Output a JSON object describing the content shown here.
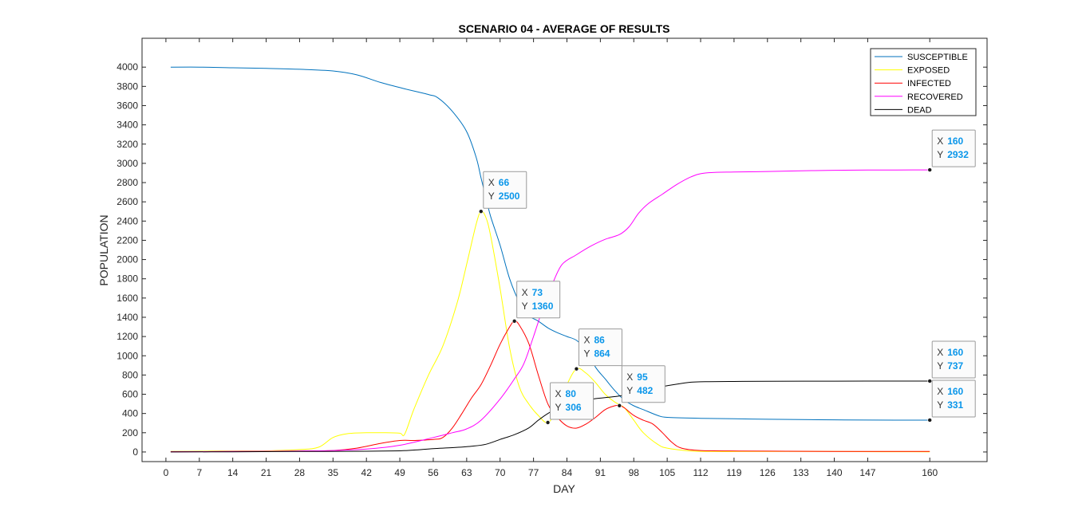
{
  "chart_data": {
    "type": "line",
    "title": "SCENARIO 04 - AVERAGE OF RESULTS",
    "xlabel": "DAY",
    "ylabel": "POPULATION",
    "xlim": [
      -5,
      172
    ],
    "ylim": [
      -100,
      4300
    ],
    "x_ticks": [
      0,
      7,
      14,
      21,
      28,
      35,
      42,
      49,
      56,
      63,
      70,
      77,
      84,
      91,
      98,
      105,
      112,
      119,
      126,
      133,
      140,
      147,
      160
    ],
    "y_ticks": [
      0,
      200,
      400,
      600,
      800,
      1000,
      1200,
      1400,
      1600,
      1800,
      2000,
      2200,
      2400,
      2600,
      2800,
      3000,
      3200,
      3400,
      3600,
      3800,
      4000
    ],
    "grid": false,
    "legend_position": "top-right",
    "series": [
      {
        "name": "SUSCEPTIBLE",
        "color": "#0072bd",
        "points": [
          [
            1,
            4000
          ],
          [
            7,
            4000
          ],
          [
            14,
            3993
          ],
          [
            21,
            3987
          ],
          [
            28,
            3978
          ],
          [
            35,
            3960
          ],
          [
            40,
            3920
          ],
          [
            45,
            3840
          ],
          [
            50,
            3775
          ],
          [
            55,
            3715
          ],
          [
            57,
            3680
          ],
          [
            60,
            3540
          ],
          [
            63,
            3330
          ],
          [
            65,
            3060
          ],
          [
            66,
            2850
          ],
          [
            67,
            2650
          ],
          [
            68,
            2450
          ],
          [
            70,
            2150
          ],
          [
            72,
            1800
          ],
          [
            74,
            1560
          ],
          [
            76,
            1420
          ],
          [
            78,
            1360
          ],
          [
            80,
            1290
          ],
          [
            82,
            1240
          ],
          [
            84,
            1200
          ],
          [
            86,
            1160
          ],
          [
            88,
            1060
          ],
          [
            90,
            880
          ],
          [
            92,
            760
          ],
          [
            94,
            640
          ],
          [
            96,
            540
          ],
          [
            98,
            480
          ],
          [
            100,
            440
          ],
          [
            103,
            380
          ],
          [
            105,
            360
          ],
          [
            112,
            350
          ],
          [
            119,
            345
          ],
          [
            126,
            340
          ],
          [
            133,
            337
          ],
          [
            140,
            334
          ],
          [
            147,
            332
          ],
          [
            160,
            331
          ]
        ]
      },
      {
        "name": "EXPOSED",
        "color": "#ffff00",
        "points": [
          [
            1,
            5
          ],
          [
            7,
            8
          ],
          [
            14,
            10
          ],
          [
            21,
            12
          ],
          [
            28,
            25
          ],
          [
            32,
            50
          ],
          [
            35,
            150
          ],
          [
            38,
            190
          ],
          [
            42,
            200
          ],
          [
            46,
            200
          ],
          [
            49,
            195
          ],
          [
            50,
            185
          ],
          [
            52,
            450
          ],
          [
            55,
            800
          ],
          [
            58,
            1100
          ],
          [
            61,
            1550
          ],
          [
            63,
            1950
          ],
          [
            65,
            2370
          ],
          [
            66,
            2500
          ],
          [
            67,
            2440
          ],
          [
            68,
            2250
          ],
          [
            70,
            1700
          ],
          [
            72,
            1080
          ],
          [
            74,
            680
          ],
          [
            76,
            500
          ],
          [
            78,
            380
          ],
          [
            80,
            306
          ],
          [
            82,
            450
          ],
          [
            84,
            700
          ],
          [
            86,
            864
          ],
          [
            88,
            820
          ],
          [
            90,
            720
          ],
          [
            92,
            600
          ],
          [
            94,
            520
          ],
          [
            96,
            460
          ],
          [
            98,
            330
          ],
          [
            100,
            200
          ],
          [
            103,
            80
          ],
          [
            105,
            40
          ],
          [
            110,
            10
          ],
          [
            115,
            5
          ],
          [
            120,
            5
          ],
          [
            130,
            5
          ],
          [
            140,
            5
          ],
          [
            150,
            3
          ],
          [
            160,
            2
          ]
        ]
      },
      {
        "name": "INFECTED",
        "color": "#ff0000",
        "points": [
          [
            1,
            3
          ],
          [
            14,
            5
          ],
          [
            28,
            10
          ],
          [
            35,
            15
          ],
          [
            40,
            40
          ],
          [
            45,
            90
          ],
          [
            49,
            120
          ],
          [
            52,
            120
          ],
          [
            56,
            130
          ],
          [
            58,
            150
          ],
          [
            60,
            250
          ],
          [
            62,
            400
          ],
          [
            64,
            560
          ],
          [
            66,
            700
          ],
          [
            68,
            900
          ],
          [
            70,
            1120
          ],
          [
            72,
            1300
          ],
          [
            73,
            1360
          ],
          [
            74,
            1320
          ],
          [
            76,
            1130
          ],
          [
            78,
            800
          ],
          [
            80,
            500
          ],
          [
            82,
            360
          ],
          [
            84,
            270
          ],
          [
            86,
            248
          ],
          [
            88,
            290
          ],
          [
            90,
            360
          ],
          [
            92,
            440
          ],
          [
            94,
            480
          ],
          [
            95,
            482
          ],
          [
            96,
            460
          ],
          [
            98,
            380
          ],
          [
            100,
            330
          ],
          [
            102,
            290
          ],
          [
            104,
            200
          ],
          [
            106,
            100
          ],
          [
            108,
            40
          ],
          [
            112,
            15
          ],
          [
            120,
            10
          ],
          [
            130,
            8
          ],
          [
            140,
            6
          ],
          [
            150,
            5
          ],
          [
            160,
            5
          ]
        ]
      },
      {
        "name": "RECOVERED",
        "color": "#ff00ff",
        "points": [
          [
            1,
            2
          ],
          [
            14,
            5
          ],
          [
            28,
            10
          ],
          [
            35,
            15
          ],
          [
            42,
            30
          ],
          [
            49,
            70
          ],
          [
            56,
            150
          ],
          [
            60,
            200
          ],
          [
            63,
            240
          ],
          [
            66,
            330
          ],
          [
            70,
            550
          ],
          [
            73,
            760
          ],
          [
            75,
            920
          ],
          [
            77,
            1200
          ],
          [
            79,
            1500
          ],
          [
            81,
            1750
          ],
          [
            83,
            1950
          ],
          [
            86,
            2050
          ],
          [
            89,
            2140
          ],
          [
            92,
            2210
          ],
          [
            95,
            2260
          ],
          [
            97,
            2340
          ],
          [
            99,
            2480
          ],
          [
            101,
            2580
          ],
          [
            104,
            2680
          ],
          [
            107,
            2780
          ],
          [
            110,
            2860
          ],
          [
            113,
            2900
          ],
          [
            119,
            2910
          ],
          [
            126,
            2915
          ],
          [
            133,
            2922
          ],
          [
            140,
            2928
          ],
          [
            147,
            2930
          ],
          [
            160,
            2932
          ]
        ]
      },
      {
        "name": "DEAD",
        "color": "#000000",
        "points": [
          [
            1,
            0
          ],
          [
            14,
            2
          ],
          [
            28,
            5
          ],
          [
            42,
            8
          ],
          [
            49,
            12
          ],
          [
            52,
            20
          ],
          [
            56,
            35
          ],
          [
            60,
            45
          ],
          [
            64,
            60
          ],
          [
            67,
            80
          ],
          [
            70,
            130
          ],
          [
            73,
            180
          ],
          [
            76,
            250
          ],
          [
            78,
            330
          ],
          [
            80,
            400
          ],
          [
            82,
            450
          ],
          [
            84,
            490
          ],
          [
            87,
            530
          ],
          [
            90,
            555
          ],
          [
            93,
            570
          ],
          [
            96,
            590
          ],
          [
            98,
            620
          ],
          [
            101,
            650
          ],
          [
            104,
            680
          ],
          [
            107,
            705
          ],
          [
            110,
            725
          ],
          [
            113,
            730
          ],
          [
            119,
            733
          ],
          [
            126,
            735
          ],
          [
            140,
            736
          ],
          [
            150,
            737
          ],
          [
            160,
            737
          ]
        ]
      }
    ],
    "annotations": [
      {
        "x": 66,
        "y": 2500,
        "x_key": "X",
        "y_key": "Y",
        "x_value": "66",
        "y_value": "2500"
      },
      {
        "x": 73,
        "y": 1360,
        "x_key": "X",
        "y_key": "Y",
        "x_value": "73",
        "y_value": "1360"
      },
      {
        "x": 86,
        "y": 864,
        "x_key": "X",
        "y_key": "Y",
        "x_value": "86",
        "y_value": "864"
      },
      {
        "x": 80,
        "y": 306,
        "x_key": "X",
        "y_key": "Y",
        "x_value": "80",
        "y_value": "306"
      },
      {
        "x": 95,
        "y": 482,
        "x_key": "X",
        "y_key": "Y",
        "x_value": "95",
        "y_value": "482"
      },
      {
        "x": 160,
        "y": 2932,
        "x_key": "X",
        "y_key": "Y",
        "x_value": "160",
        "y_value": "2932"
      },
      {
        "x": 160,
        "y": 737,
        "x_key": "X",
        "y_key": "Y",
        "x_value": "160",
        "y_value": "737"
      },
      {
        "x": 160,
        "y": 331,
        "x_key": "X",
        "y_key": "Y",
        "x_value": "160",
        "y_value": "331"
      }
    ]
  }
}
